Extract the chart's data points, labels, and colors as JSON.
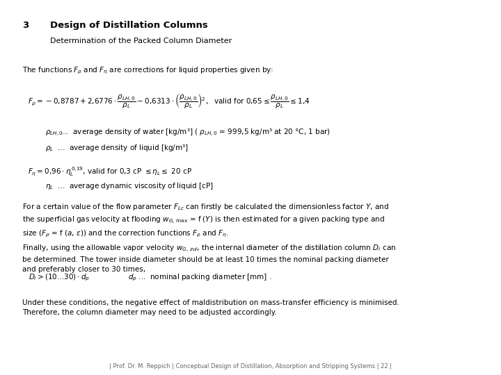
{
  "bg_color": "#ffffff",
  "header_num": "3",
  "header_title": "Design of Distillation Columns",
  "header_subtitle": "Determination of the Packed Column Diameter",
  "rule_color": "#8B0000",
  "footer_text": "| Prof. Dr. M. Reppich | Conceptual Design of Distillation, Absorption and Stripping Systems | 22 |",
  "lm": 0.045,
  "fs_body": 7.5,
  "fs_formula": 7.5,
  "fs_header_title": 9.5,
  "fs_header_sub": 8.0,
  "fs_footer": 6.0
}
